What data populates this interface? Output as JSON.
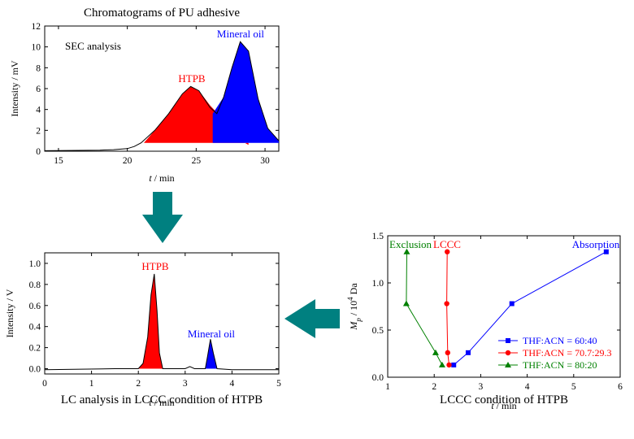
{
  "chart_data": [
    {
      "type": "area",
      "title": "Chromatograms of PU adhesive",
      "xlabel_italic": "t",
      "xlabel_rest": " / min",
      "ylabel": "Intensity / mV",
      "xlim": [
        14,
        31
      ],
      "ylim": [
        0,
        12
      ],
      "xticks": [
        15,
        20,
        25,
        30
      ],
      "yticks": [
        0,
        2,
        4,
        6,
        8,
        10,
        12
      ],
      "annotations": {
        "sec": "SEC analysis",
        "htpb": "HTPB",
        "oil": "Mineral oil"
      },
      "colors": {
        "htpb": "#ff0000",
        "oil": "#0000ff",
        "trace": "#000000"
      },
      "series": [
        {
          "name": "HTPB",
          "x": [
            21.2,
            22,
            23,
            24,
            24.6,
            25.2,
            26,
            27,
            28,
            28.8
          ],
          "y": [
            0.8,
            2.0,
            3.6,
            5.5,
            6.2,
            5.8,
            4.4,
            3.0,
            1.2,
            0.6
          ]
        },
        {
          "name": "Mineral oil",
          "x": [
            26.2,
            27,
            27.6,
            28.2,
            28.8,
            29.5,
            30.2,
            31
          ],
          "y": [
            3.6,
            5.2,
            8.0,
            10.5,
            9.6,
            5.0,
            2.2,
            1.0
          ]
        }
      ],
      "trace": {
        "x": [
          14,
          18,
          19,
          20,
          20.5,
          21,
          22,
          23,
          24,
          24.6,
          25.2,
          26,
          26.5,
          27,
          27.6,
          28.2,
          28.8,
          29.5,
          30.2,
          31
        ],
        "y": [
          0.05,
          0.1,
          0.15,
          0.25,
          0.45,
          0.8,
          2.0,
          3.6,
          5.5,
          6.2,
          5.8,
          4.2,
          3.6,
          5.2,
          8.0,
          10.5,
          9.6,
          5.0,
          2.2,
          1.0
        ]
      }
    },
    {
      "type": "area",
      "title": "LC analysis in LCCC condition of HTPB",
      "xlabel_italic": "t",
      "xlabel_rest": " / min",
      "ylabel": "Intensity / V",
      "xlim": [
        0,
        5
      ],
      "ylim": [
        -0.05,
        1.1
      ],
      "xticks": [
        0,
        1,
        2,
        3,
        4,
        5
      ],
      "yticks": [
        0.0,
        0.2,
        0.4,
        0.6,
        0.8,
        1.0
      ],
      "ytick_labels": [
        "0.0",
        "0.2",
        "0.4",
        "0.6",
        "0.8",
        "1.0"
      ],
      "annotations": {
        "htpb": "HTPB",
        "oil": "Mineral oil"
      },
      "colors": {
        "htpb": "#ff0000",
        "oil": "#0000ff",
        "trace": "#000000"
      },
      "series": [
        {
          "name": "HTPB",
          "x": [
            2.0,
            2.1,
            2.2,
            2.27,
            2.34,
            2.4,
            2.45,
            2.52
          ],
          "y": [
            0.0,
            0.05,
            0.3,
            0.7,
            0.9,
            0.55,
            0.15,
            0.0
          ]
        },
        {
          "name": "Mineral oil",
          "x": [
            3.43,
            3.48,
            3.54,
            3.6,
            3.68
          ],
          "y": [
            0.0,
            0.12,
            0.28,
            0.15,
            0.0
          ]
        }
      ],
      "trace": {
        "x": [
          0,
          1.5,
          2.0,
          2.1,
          2.2,
          2.27,
          2.34,
          2.4,
          2.45,
          2.52,
          2.8,
          3.0,
          3.1,
          3.2,
          3.43,
          3.48,
          3.54,
          3.6,
          3.68,
          4.0,
          5.0
        ],
        "y": [
          -0.01,
          0.0,
          0.0,
          0.05,
          0.3,
          0.7,
          0.9,
          0.55,
          0.15,
          0.0,
          0.0,
          0.0,
          0.02,
          0.0,
          0.0,
          0.12,
          0.28,
          0.15,
          0.0,
          -0.01,
          -0.01
        ]
      }
    },
    {
      "type": "line",
      "title": "LCCC condition of HTPB",
      "xlabel_italic": "t",
      "xlabel_rest": " / min",
      "ylabel_italic": "M",
      "ylabel_sub": "p",
      "ylabel_rest": " / 10",
      "ylabel_sup": "4",
      "ylabel_end": " Da",
      "xlim": [
        1,
        6
      ],
      "ylim": [
        0,
        1.5
      ],
      "xticks": [
        1,
        2,
        3,
        4,
        5,
        6
      ],
      "yticks": [
        0.0,
        0.5,
        1.0,
        1.5
      ],
      "ytick_labels": [
        "0.0",
        "0.5",
        "1.0",
        "1.5"
      ],
      "annotations": {
        "exclusion": "Exclusion",
        "lccc": "LCCC",
        "absorption": "Absorption"
      },
      "legend_position": "bottom-right",
      "series": [
        {
          "name": "THF:ACN = 60:40",
          "color": "#0000ff",
          "marker": "square",
          "x": [
            2.42,
            2.73,
            3.67,
            5.7
          ],
          "y": [
            0.13,
            0.26,
            0.78,
            1.33
          ]
        },
        {
          "name": "THF:ACN = 70.7:29.3",
          "color": "#ff0000",
          "marker": "circle",
          "x": [
            2.32,
            2.29,
            2.27,
            2.28
          ],
          "y": [
            0.13,
            0.26,
            0.78,
            1.33
          ]
        },
        {
          "name": "THF:ACN = 80:20",
          "color": "#008000",
          "marker": "triangle",
          "x": [
            2.17,
            2.03,
            1.4,
            1.41
          ],
          "y": [
            0.13,
            0.26,
            0.78,
            1.33
          ]
        }
      ]
    }
  ],
  "colors": {
    "arrow": "#008080"
  }
}
